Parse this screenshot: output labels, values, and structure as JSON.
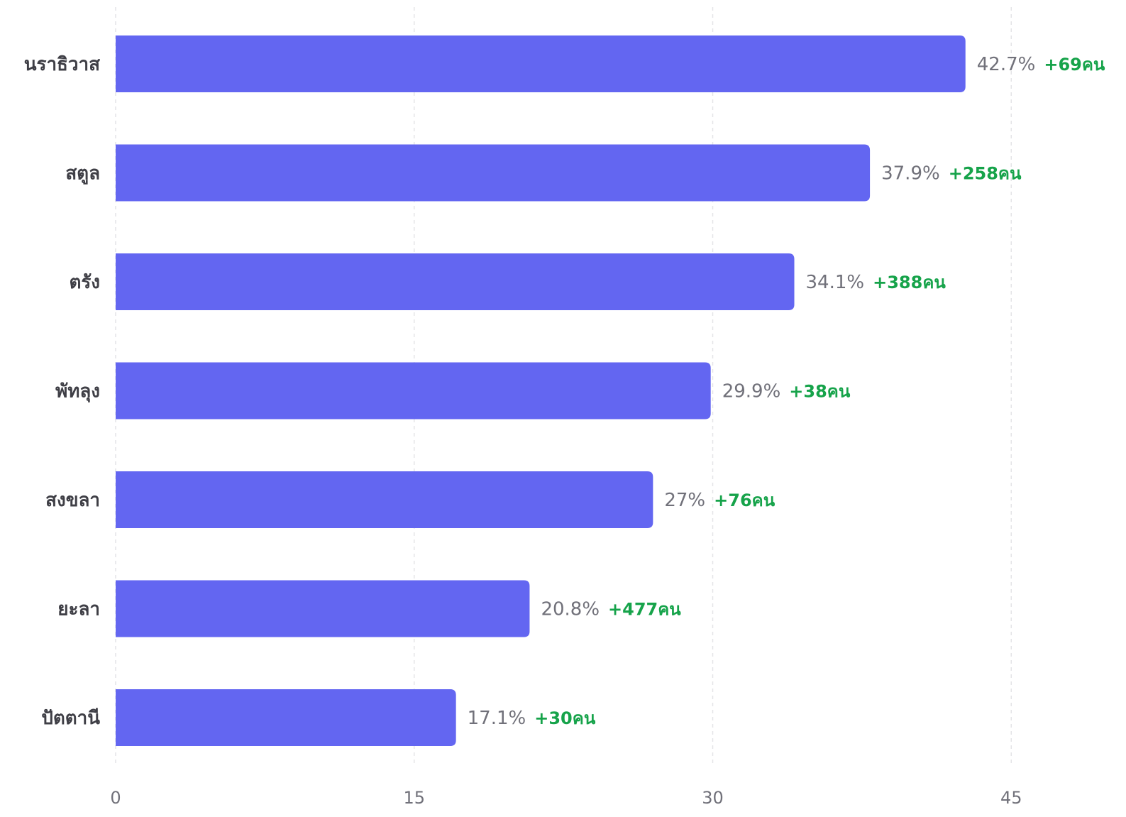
{
  "colors": {
    "bar": "#6366f1",
    "delta": "#16a34a",
    "value_text": "#71717a",
    "category_text": "#3f3f46",
    "grid": "#e4e4e7"
  },
  "chart_data": {
    "type": "bar",
    "orientation": "horizontal",
    "title": "",
    "xlabel": "",
    "ylabel": "",
    "xlim": [
      0,
      45
    ],
    "x_ticks": [
      0,
      15,
      30,
      45
    ],
    "grid": "vertical dashed",
    "legend": "none",
    "categories": [
      "นราธิวาส",
      "สตูล",
      "ตรัง",
      "พัทลุง",
      "สงขลา",
      "ยะลา",
      "ปัตตานี"
    ],
    "values": [
      42.7,
      37.9,
      34.1,
      29.9,
      27,
      20.8,
      17.1
    ],
    "value_labels": [
      "42.7%",
      "37.9%",
      "34.1%",
      "29.9%",
      "27%",
      "20.8%",
      "17.1%"
    ],
    "delta_labels": [
      "+69คน",
      "+258คน",
      "+388คน",
      "+38คน",
      "+76คน",
      "+477คน",
      "+30คน"
    ]
  }
}
